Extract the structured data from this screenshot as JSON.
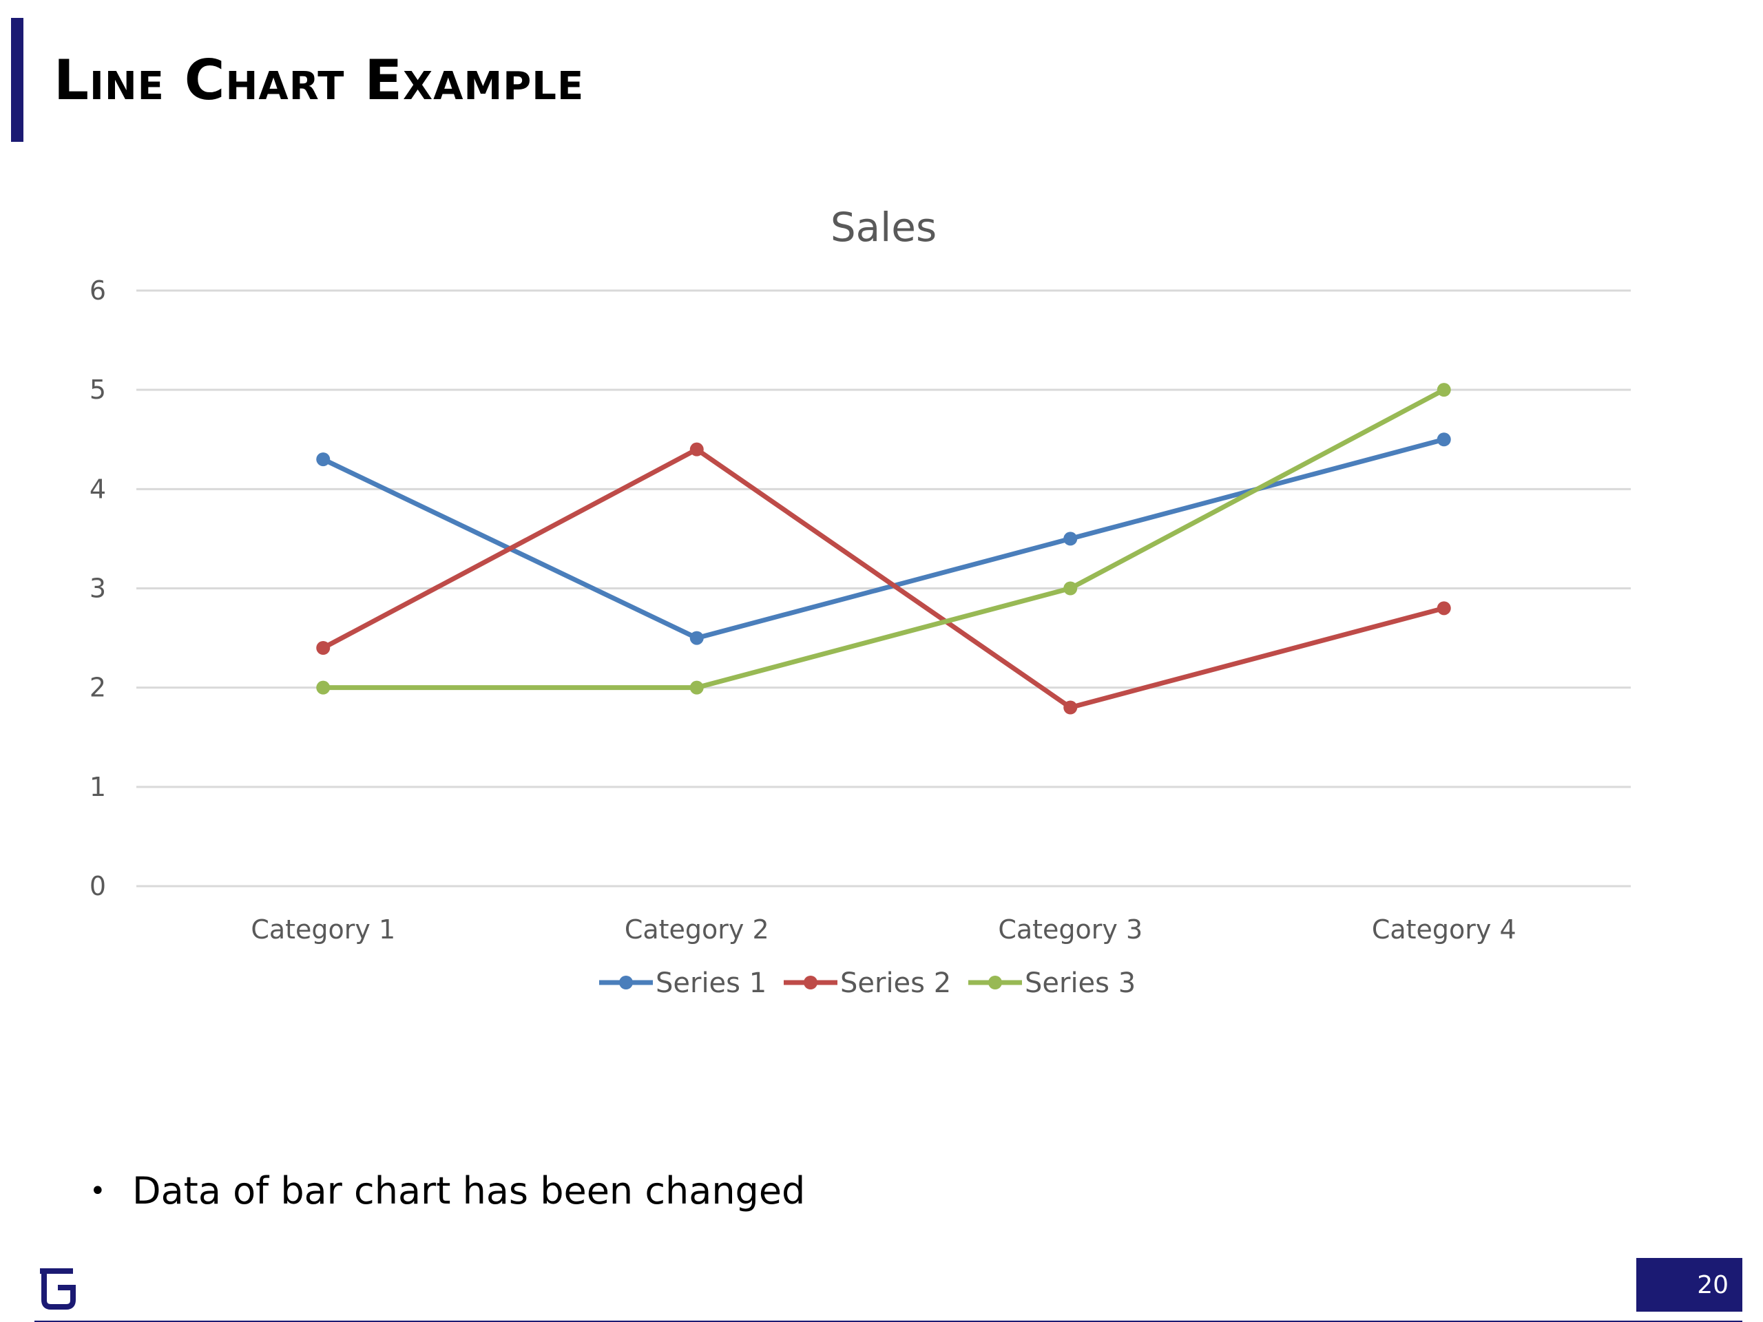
{
  "slide": {
    "title": "Line Chart Example",
    "bullets": [
      "Data of bar chart has been changed"
    ],
    "page_number": "20",
    "accent_color": "#1b1a73"
  },
  "chart_data": {
    "type": "line",
    "title": "Sales",
    "categories": [
      "Category 1",
      "Category 2",
      "Category 3",
      "Category 4"
    ],
    "series": [
      {
        "name": "Series 1",
        "values": [
          4.3,
          2.5,
          3.5,
          4.5
        ],
        "color": "#4a7ebb"
      },
      {
        "name": "Series 2",
        "values": [
          2.4,
          4.4,
          1.8,
          2.8
        ],
        "color": "#be4b48"
      },
      {
        "name": "Series 3",
        "values": [
          2,
          2,
          3,
          5
        ],
        "color": "#98b954"
      }
    ],
    "ylim": [
      0,
      6
    ],
    "yticks": [
      0,
      1,
      2,
      3,
      4,
      5,
      6
    ],
    "xlabel": "",
    "ylabel": "",
    "grid": true,
    "legend": "bottom",
    "markers": true
  }
}
